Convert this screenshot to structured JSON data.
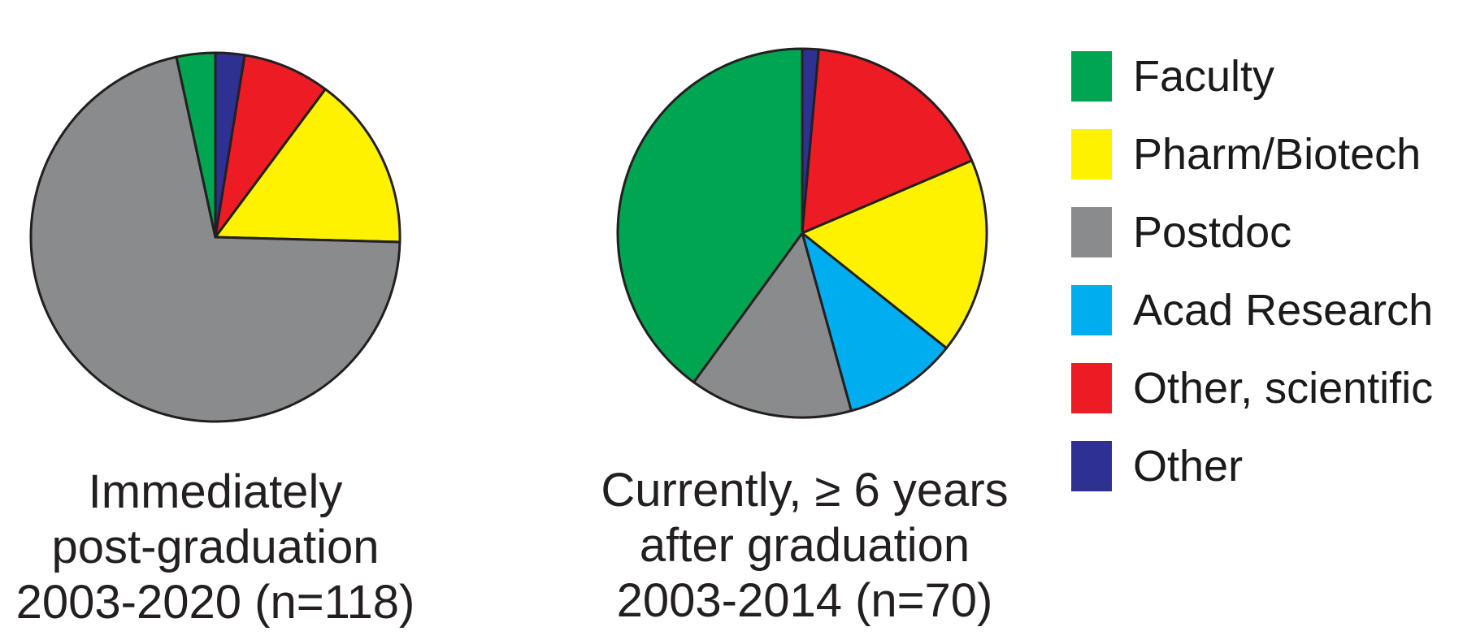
{
  "chart_data": [
    {
      "type": "pie",
      "title": "Immediately post-graduation 2003-2020 (n=118)",
      "caption_lines": [
        "Immediately",
        "post-graduation",
        "2003-2020 (n=118)"
      ],
      "n": 118,
      "start_angle_deg": 0,
      "direction": "clockwise",
      "slices": [
        {
          "label": "Other",
          "count": 3,
          "percent": 2.5,
          "color": "#2E3192"
        },
        {
          "label": "Other, scientific",
          "count": 9,
          "percent": 7.6,
          "color": "#ED1C24"
        },
        {
          "label": "Pharm/Biotech",
          "count": 18,
          "percent": 15.3,
          "color": "#FFF200"
        },
        {
          "label": "Acad Research",
          "count": 0,
          "percent": 0.0,
          "color": "#00AEEF"
        },
        {
          "label": "Postdoc",
          "count": 84,
          "percent": 71.2,
          "color": "#8A8B8D"
        },
        {
          "label": "Faculty",
          "count": 4,
          "percent": 3.4,
          "color": "#00A551"
        }
      ]
    },
    {
      "type": "pie",
      "title": "Currently, ≥ 6 years after graduation 2003-2014 (n=70)",
      "caption_lines": [
        "Currently, ≥ 6 years",
        "after graduation",
        "2003-2014 (n=70)"
      ],
      "n": 70,
      "start_angle_deg": 0,
      "direction": "clockwise",
      "slices": [
        {
          "label": "Other",
          "count": 1,
          "percent": 1.4,
          "color": "#2E3192"
        },
        {
          "label": "Other, scientific",
          "count": 12,
          "percent": 17.1,
          "color": "#ED1C24"
        },
        {
          "label": "Pharm/Biotech",
          "count": 12,
          "percent": 17.1,
          "color": "#FFF200"
        },
        {
          "label": "Acad Research",
          "count": 7,
          "percent": 10.0,
          "color": "#00AEEF"
        },
        {
          "label": "Postdoc",
          "count": 10,
          "percent": 14.3,
          "color": "#8A8B8D"
        },
        {
          "label": "Faculty",
          "count": 28,
          "percent": 40.0,
          "color": "#00A551"
        }
      ]
    }
  ],
  "legend": {
    "items": [
      {
        "label": "Faculty",
        "color": "#00A551"
      },
      {
        "label": "Pharm/Biotech",
        "color": "#FFF200"
      },
      {
        "label": "Postdoc",
        "color": "#8A8B8D"
      },
      {
        "label": "Acad Research",
        "color": "#00AEEF"
      },
      {
        "label": "Other, scientific",
        "color": "#ED1C24"
      },
      {
        "label": "Other",
        "color": "#2E3192"
      }
    ]
  },
  "colors": {
    "outline": "#231F20",
    "caption_text": "#231F20",
    "legend_text": "#1A1A1A",
    "background": "#FFFFFF"
  }
}
